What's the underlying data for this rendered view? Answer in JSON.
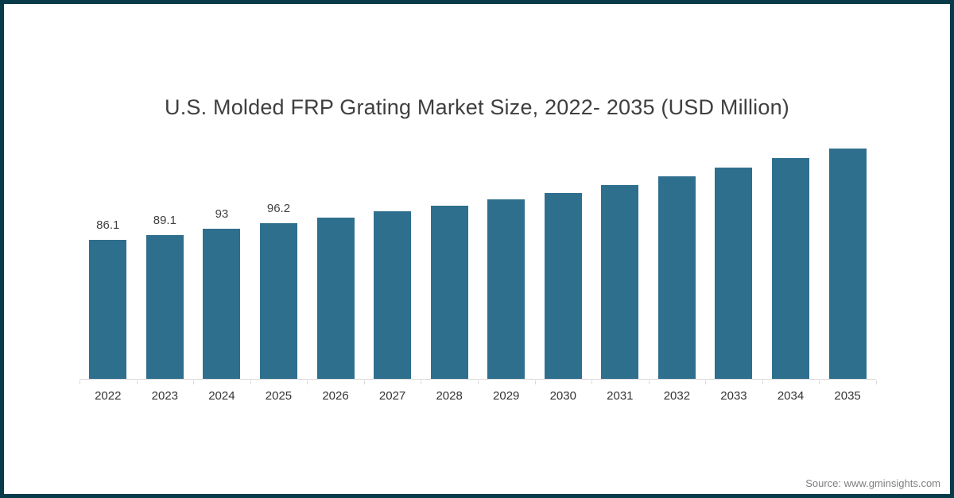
{
  "page": {
    "source_attribution": "Source: www.gminsights.com"
  },
  "colors": {
    "bar": "#2f6f8e",
    "frame_border": "#083a4a",
    "axis_line": "#d9d9d9",
    "title_text": "#3f3f3f",
    "value_label_text": "#404040",
    "x_label_text": "#333333",
    "source_text": "#7f7f7f",
    "background": "#ffffff"
  },
  "chart_data": {
    "type": "bar",
    "title": "U.S. Molded FRP Grating Market Size, 2022- 2035 (USD Million)",
    "categories": [
      "2022",
      "2023",
      "2024",
      "2025",
      "2026",
      "2027",
      "2028",
      "2029",
      "2030",
      "2031",
      "2032",
      "2033",
      "2034",
      "2035"
    ],
    "values": [
      86.1,
      89.1,
      93,
      96.2,
      100,
      103.7,
      107.4,
      111.2,
      115.3,
      120.1,
      125.3,
      130.9,
      136.5,
      142.6
    ],
    "data_labels": [
      "86.1",
      "89.1",
      "93",
      "96.2",
      "",
      "",
      "",
      "",
      "",
      "",
      "",
      "",
      "",
      ""
    ],
    "xlabel": "",
    "ylabel": "",
    "ylim": [
      0,
      150
    ],
    "grid": false,
    "legend": "none",
    "y_axis_shown": false
  }
}
